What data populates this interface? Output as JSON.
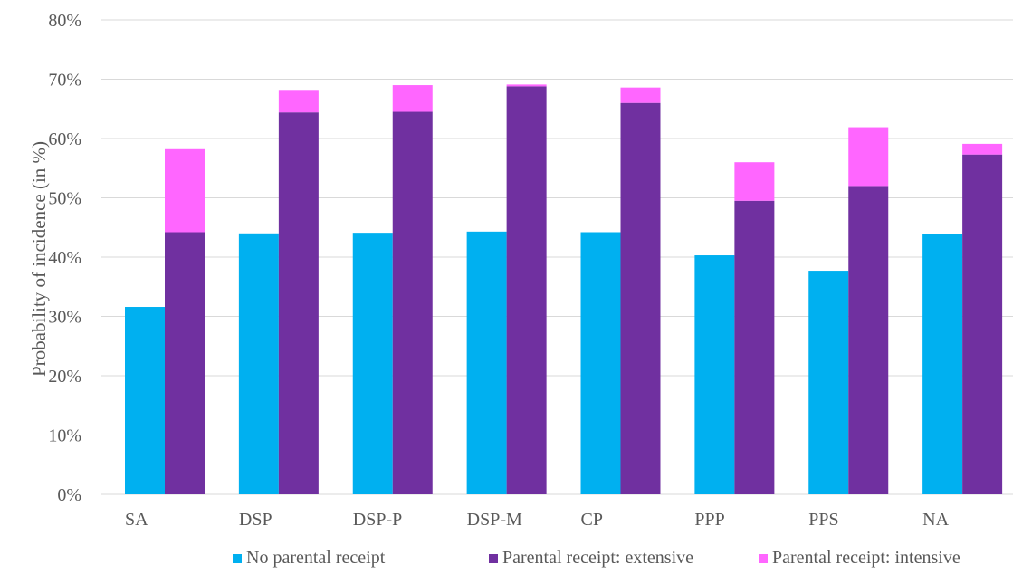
{
  "chart_data": {
    "type": "bar",
    "ylabel": "Probability of incidence (in %)",
    "ylim": [
      0,
      80
    ],
    "yticks": [
      0,
      10,
      20,
      30,
      40,
      50,
      60,
      70,
      80
    ],
    "ytick_labels": [
      "0%",
      "10%",
      "20%",
      "30%",
      "40%",
      "50%",
      "60%",
      "70%",
      "80%"
    ],
    "categories": [
      "SA",
      "DSP",
      "DSP-P",
      "DSP-M",
      "CP",
      "PPP",
      "PPS",
      "NA"
    ],
    "grid": true,
    "legend_position": "bottom",
    "series": [
      {
        "name": "No parental receipt",
        "color": "#00b0f0",
        "stack": "a",
        "values": [
          31.6,
          44.0,
          44.1,
          44.3,
          44.2,
          40.3,
          37.7,
          43.9
        ]
      },
      {
        "name": "Parental receipt: extensive",
        "color": "#7030a0",
        "stack": "b",
        "values": [
          44.2,
          64.4,
          64.5,
          68.8,
          66.0,
          49.5,
          52.0,
          57.3
        ]
      },
      {
        "name": "Parental receipt: intensive",
        "color": "#ff66ff",
        "stack": "b",
        "values": [
          14.0,
          3.8,
          4.5,
          0.3,
          2.6,
          6.5,
          9.9,
          1.8
        ]
      }
    ]
  }
}
